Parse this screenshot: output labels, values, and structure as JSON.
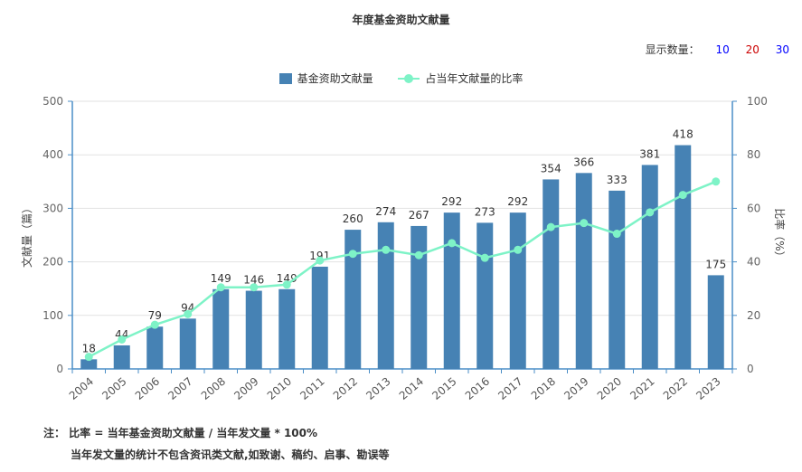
{
  "title": "年度基金资助文献量",
  "display_count": {
    "label": "显示数量：",
    "options": [
      {
        "text": "10",
        "color": "#0000ff"
      },
      {
        "text": "20",
        "color": "#cc0000"
      },
      {
        "text": "30",
        "color": "#0000ff"
      }
    ]
  },
  "colors": {
    "bar": "#4682b4",
    "line": "#7ef3c7",
    "axis": "#4a8ec7",
    "grid": "#e2e2e2"
  },
  "notes": {
    "line1": "注： 比率 = 当年基金资助文献量 / 当年发文量 * 100%",
    "line2": "当年发文量的统计不包含资讯类文献,如致谢、稿约、启事、勘误等"
  },
  "chart_data": {
    "type": "bar",
    "title": "年度基金资助文献量",
    "categories": [
      "2004",
      "2005",
      "2006",
      "2007",
      "2008",
      "2009",
      "2010",
      "2011",
      "2012",
      "2013",
      "2014",
      "2015",
      "2016",
      "2017",
      "2018",
      "2019",
      "2020",
      "2021",
      "2022",
      "2023"
    ],
    "series": [
      {
        "name": "基金资助文献量",
        "type": "bar",
        "axis": "left",
        "values": [
          18,
          44,
          79,
          94,
          149,
          146,
          149,
          191,
          260,
          274,
          267,
          292,
          273,
          292,
          354,
          366,
          333,
          381,
          418,
          175
        ]
      },
      {
        "name": "占当年文献量的比率",
        "type": "line",
        "axis": "right",
        "values": [
          4.5,
          11,
          16.5,
          20.5,
          30.5,
          30.5,
          31.5,
          40.5,
          43,
          44.5,
          42.5,
          47,
          41.5,
          44.5,
          53,
          54.5,
          50.5,
          58.5,
          65,
          70
        ]
      }
    ],
    "ylabel": "文献量（篇）",
    "y2label": "比率（%）",
    "ylim": [
      0,
      500
    ],
    "y2lim": [
      0,
      100
    ],
    "yticks": [
      0,
      100,
      200,
      300,
      400,
      500
    ],
    "y2ticks": [
      0,
      20,
      40,
      60,
      80,
      100
    ],
    "grid": true,
    "legend": "top-center"
  }
}
